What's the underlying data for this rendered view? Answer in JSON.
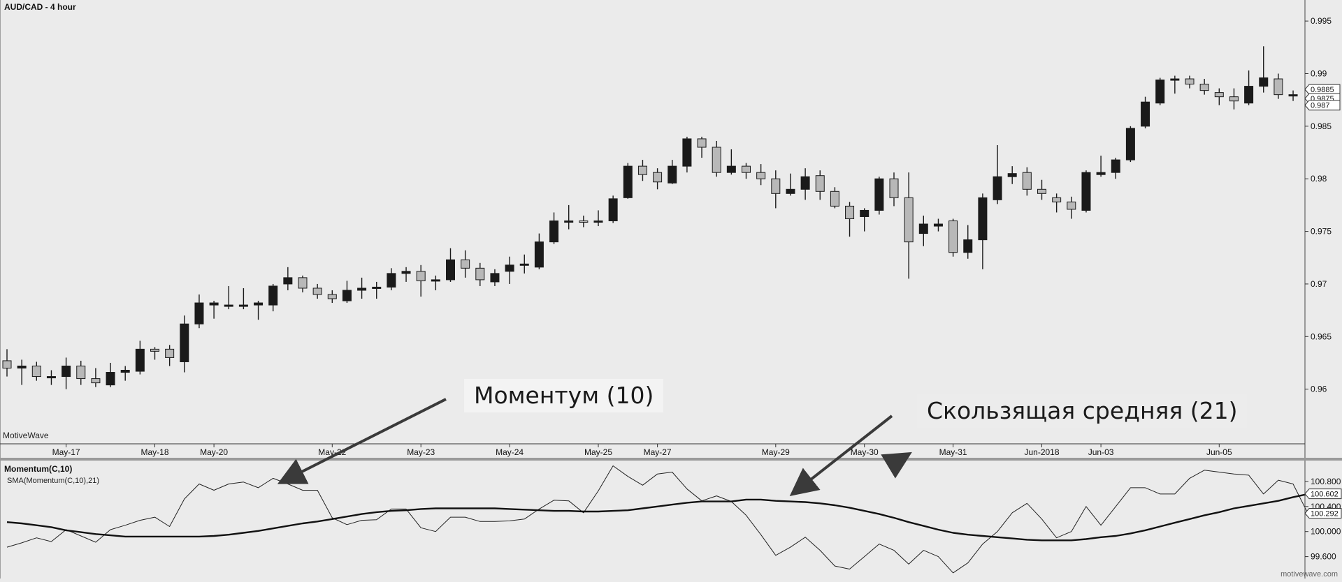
{
  "title": "AUD/CAD - 4 hour",
  "brand": "MotiveWave",
  "watermark": "motivewave.com",
  "indicator": {
    "title": "Momentum(C,10)",
    "subtitle": "SMA(Momentum(C,10),21)"
  },
  "annotations": {
    "momentum": "Моментум (10)",
    "sma": "Скользящая средняя (21)"
  },
  "colors": {
    "background": "#ebebeb",
    "bull": "#1a1a1a",
    "bear": "#b8b8b8",
    "line": "#111111"
  },
  "chart_data": [
    {
      "type": "candlestick",
      "title": "AUD/CAD - 4 hour",
      "x_labels": [
        "May-17",
        "May-18",
        "May-20",
        "May-22",
        "May-23",
        "May-24",
        "May-25",
        "May-27",
        "May-29",
        "May-30",
        "May-31",
        "Jun-2018",
        "Jun-03",
        "Jun-05"
      ],
      "x_label_index": [
        4,
        10,
        14,
        22,
        28,
        34,
        40,
        44,
        52,
        58,
        64,
        70,
        74,
        82
      ],
      "ylim": [
        0.955,
        0.997
      ],
      "y_ticks": [
        "0.96",
        "0.965",
        "0.97",
        "0.975",
        "0.98",
        "0.985",
        "0.99",
        "0.995"
      ],
      "price_labels": [
        "0.9885",
        "0.9875",
        "0.987"
      ],
      "candles": [
        {
          "o": 0.9627,
          "h": 0.9638,
          "l": 0.9612,
          "c": 0.962
        },
        {
          "o": 0.962,
          "h": 0.9628,
          "l": 0.9604,
          "c": 0.9622
        },
        {
          "o": 0.9622,
          "h": 0.9626,
          "l": 0.9608,
          "c": 0.9612
        },
        {
          "o": 0.9612,
          "h": 0.9618,
          "l": 0.9604,
          "c": 0.9612
        },
        {
          "o": 0.9612,
          "h": 0.963,
          "l": 0.96,
          "c": 0.9622
        },
        {
          "o": 0.9622,
          "h": 0.9627,
          "l": 0.9604,
          "c": 0.961
        },
        {
          "o": 0.961,
          "h": 0.962,
          "l": 0.9602,
          "c": 0.9606
        },
        {
          "o": 0.9604,
          "h": 0.9625,
          "l": 0.9602,
          "c": 0.9616
        },
        {
          "o": 0.9616,
          "h": 0.9622,
          "l": 0.9608,
          "c": 0.9618
        },
        {
          "o": 0.9617,
          "h": 0.9646,
          "l": 0.9614,
          "c": 0.9638
        },
        {
          "o": 0.9638,
          "h": 0.964,
          "l": 0.9628,
          "c": 0.9636
        },
        {
          "o": 0.9638,
          "h": 0.9642,
          "l": 0.9622,
          "c": 0.963
        },
        {
          "o": 0.9626,
          "h": 0.967,
          "l": 0.9616,
          "c": 0.9662
        },
        {
          "o": 0.9662,
          "h": 0.969,
          "l": 0.9658,
          "c": 0.9682
        },
        {
          "o": 0.968,
          "h": 0.9684,
          "l": 0.9667,
          "c": 0.9682
        },
        {
          "o": 0.968,
          "h": 0.9698,
          "l": 0.9676,
          "c": 0.968
        },
        {
          "o": 0.968,
          "h": 0.9696,
          "l": 0.9676,
          "c": 0.968
        },
        {
          "o": 0.968,
          "h": 0.9684,
          "l": 0.9666,
          "c": 0.9682
        },
        {
          "o": 0.968,
          "h": 0.97,
          "l": 0.9674,
          "c": 0.9698
        },
        {
          "o": 0.97,
          "h": 0.9716,
          "l": 0.9694,
          "c": 0.9706
        },
        {
          "o": 0.9706,
          "h": 0.9708,
          "l": 0.9692,
          "c": 0.9696
        },
        {
          "o": 0.9696,
          "h": 0.97,
          "l": 0.9686,
          "c": 0.969
        },
        {
          "o": 0.969,
          "h": 0.9694,
          "l": 0.9682,
          "c": 0.9686
        },
        {
          "o": 0.9684,
          "h": 0.9703,
          "l": 0.9682,
          "c": 0.9694
        },
        {
          "o": 0.9694,
          "h": 0.9706,
          "l": 0.9686,
          "c": 0.9696
        },
        {
          "o": 0.9696,
          "h": 0.9702,
          "l": 0.9686,
          "c": 0.9697
        },
        {
          "o": 0.9697,
          "h": 0.9715,
          "l": 0.9694,
          "c": 0.971
        },
        {
          "o": 0.971,
          "h": 0.9716,
          "l": 0.9702,
          "c": 0.9712
        },
        {
          "o": 0.9712,
          "h": 0.9718,
          "l": 0.9688,
          "c": 0.9703
        },
        {
          "o": 0.9703,
          "h": 0.9708,
          "l": 0.9694,
          "c": 0.9704
        },
        {
          "o": 0.9704,
          "h": 0.9734,
          "l": 0.9702,
          "c": 0.9723
        },
        {
          "o": 0.9723,
          "h": 0.9732,
          "l": 0.9706,
          "c": 0.9715
        },
        {
          "o": 0.9715,
          "h": 0.972,
          "l": 0.9698,
          "c": 0.9704
        },
        {
          "o": 0.9702,
          "h": 0.9714,
          "l": 0.9698,
          "c": 0.971
        },
        {
          "o": 0.9712,
          "h": 0.9726,
          "l": 0.97,
          "c": 0.9718
        },
        {
          "o": 0.9718,
          "h": 0.9728,
          "l": 0.971,
          "c": 0.9719
        },
        {
          "o": 0.9716,
          "h": 0.9748,
          "l": 0.9714,
          "c": 0.974
        },
        {
          "o": 0.974,
          "h": 0.9768,
          "l": 0.9738,
          "c": 0.976
        },
        {
          "o": 0.976,
          "h": 0.9775,
          "l": 0.9752,
          "c": 0.976
        },
        {
          "o": 0.976,
          "h": 0.9765,
          "l": 0.9754,
          "c": 0.9759
        },
        {
          "o": 0.9759,
          "h": 0.977,
          "l": 0.9755,
          "c": 0.976
        },
        {
          "o": 0.976,
          "h": 0.9784,
          "l": 0.9758,
          "c": 0.9781
        },
        {
          "o": 0.9782,
          "h": 0.9815,
          "l": 0.9781,
          "c": 0.9812
        },
        {
          "o": 0.9812,
          "h": 0.9818,
          "l": 0.9798,
          "c": 0.9804
        },
        {
          "o": 0.9806,
          "h": 0.981,
          "l": 0.979,
          "c": 0.9797
        },
        {
          "o": 0.9796,
          "h": 0.9818,
          "l": 0.9795,
          "c": 0.9812
        },
        {
          "o": 0.9812,
          "h": 0.984,
          "l": 0.9806,
          "c": 0.9838
        },
        {
          "o": 0.9838,
          "h": 0.984,
          "l": 0.982,
          "c": 0.983
        },
        {
          "o": 0.983,
          "h": 0.9836,
          "l": 0.9802,
          "c": 0.9806
        },
        {
          "o": 0.9806,
          "h": 0.9828,
          "l": 0.9804,
          "c": 0.9812
        },
        {
          "o": 0.9812,
          "h": 0.9815,
          "l": 0.98,
          "c": 0.9806
        },
        {
          "o": 0.9806,
          "h": 0.9814,
          "l": 0.9794,
          "c": 0.98
        },
        {
          "o": 0.98,
          "h": 0.9808,
          "l": 0.9772,
          "c": 0.9786
        },
        {
          "o": 0.9786,
          "h": 0.9805,
          "l": 0.9784,
          "c": 0.979
        },
        {
          "o": 0.979,
          "h": 0.981,
          "l": 0.978,
          "c": 0.9802
        },
        {
          "o": 0.9803,
          "h": 0.9808,
          "l": 0.978,
          "c": 0.9788
        },
        {
          "o": 0.9788,
          "h": 0.9792,
          "l": 0.9772,
          "c": 0.9774
        },
        {
          "o": 0.9774,
          "h": 0.9778,
          "l": 0.9745,
          "c": 0.9762
        },
        {
          "o": 0.9764,
          "h": 0.9772,
          "l": 0.975,
          "c": 0.977
        },
        {
          "o": 0.977,
          "h": 0.9802,
          "l": 0.9766,
          "c": 0.98
        },
        {
          "o": 0.98,
          "h": 0.9806,
          "l": 0.9774,
          "c": 0.9782
        },
        {
          "o": 0.9782,
          "h": 0.9806,
          "l": 0.9705,
          "c": 0.974
        },
        {
          "o": 0.9748,
          "h": 0.9765,
          "l": 0.9736,
          "c": 0.9757
        },
        {
          "o": 0.9755,
          "h": 0.9762,
          "l": 0.975,
          "c": 0.9757
        },
        {
          "o": 0.976,
          "h": 0.9762,
          "l": 0.9726,
          "c": 0.973
        },
        {
          "o": 0.973,
          "h": 0.9756,
          "l": 0.9724,
          "c": 0.9742
        },
        {
          "o": 0.9742,
          "h": 0.9786,
          "l": 0.9714,
          "c": 0.9782
        },
        {
          "o": 0.978,
          "h": 0.9832,
          "l": 0.9776,
          "c": 0.9802
        },
        {
          "o": 0.9802,
          "h": 0.9812,
          "l": 0.9795,
          "c": 0.9805
        },
        {
          "o": 0.9806,
          "h": 0.9811,
          "l": 0.9784,
          "c": 0.979
        },
        {
          "o": 0.979,
          "h": 0.9799,
          "l": 0.978,
          "c": 0.9786
        },
        {
          "o": 0.9782,
          "h": 0.9786,
          "l": 0.9768,
          "c": 0.9778
        },
        {
          "o": 0.9778,
          "h": 0.9783,
          "l": 0.9762,
          "c": 0.9771
        },
        {
          "o": 0.977,
          "h": 0.9808,
          "l": 0.9768,
          "c": 0.9806
        },
        {
          "o": 0.9804,
          "h": 0.9822,
          "l": 0.9802,
          "c": 0.9806
        },
        {
          "o": 0.9806,
          "h": 0.982,
          "l": 0.98,
          "c": 0.9818
        },
        {
          "o": 0.9818,
          "h": 0.985,
          "l": 0.9816,
          "c": 0.9848
        },
        {
          "o": 0.985,
          "h": 0.9878,
          "l": 0.9848,
          "c": 0.9873
        },
        {
          "o": 0.9872,
          "h": 0.9896,
          "l": 0.987,
          "c": 0.9894
        },
        {
          "o": 0.9895,
          "h": 0.9898,
          "l": 0.9881,
          "c": 0.9895
        },
        {
          "o": 0.9895,
          "h": 0.9898,
          "l": 0.9886,
          "c": 0.989
        },
        {
          "o": 0.989,
          "h": 0.9895,
          "l": 0.988,
          "c": 0.9884
        },
        {
          "o": 0.9882,
          "h": 0.9886,
          "l": 0.987,
          "c": 0.9878
        },
        {
          "o": 0.9878,
          "h": 0.9886,
          "l": 0.9866,
          "c": 0.9874
        },
        {
          "o": 0.9872,
          "h": 0.9903,
          "l": 0.987,
          "c": 0.9888
        },
        {
          "o": 0.9888,
          "h": 0.9926,
          "l": 0.9882,
          "c": 0.9896
        },
        {
          "o": 0.9895,
          "h": 0.99,
          "l": 0.9876,
          "c": 0.988
        },
        {
          "o": 0.988,
          "h": 0.9884,
          "l": 0.9874,
          "c": 0.988
        }
      ]
    },
    {
      "type": "line",
      "title": "Momentum(C,10)",
      "ylim": [
        99.25,
        101.1
      ],
      "y_ticks": [
        "99.600",
        "100.000",
        "100.400",
        "100.800"
      ],
      "value_labels": [
        "100.602",
        "100.292"
      ],
      "series": [
        {
          "name": "Momentum(C,10)",
          "values": [
            99.75,
            99.82,
            99.9,
            99.84,
            100.03,
            99.93,
            99.83,
            100.03,
            100.1,
            100.18,
            100.23,
            100.08,
            100.52,
            100.76,
            100.66,
            100.76,
            100.79,
            100.7,
            100.85,
            100.76,
            100.66,
            100.66,
            100.22,
            100.11,
            100.18,
            100.19,
            100.36,
            100.36,
            100.06,
            100.0,
            100.23,
            100.23,
            100.16,
            100.16,
            100.17,
            100.2,
            100.36,
            100.5,
            100.49,
            100.3,
            100.65,
            101.05,
            100.88,
            100.74,
            100.92,
            100.95,
            100.68,
            100.49,
            100.57,
            100.48,
            100.26,
            99.95,
            99.62,
            99.75,
            99.91,
            99.7,
            99.45,
            99.4,
            99.6,
            99.8,
            99.7,
            99.48,
            99.7,
            99.6,
            99.34,
            99.5,
            99.8,
            100.0,
            100.3,
            100.45,
            100.2,
            99.9,
            100.0,
            100.4,
            100.1,
            100.4,
            100.7,
            100.7,
            100.6,
            100.6,
            100.85,
            100.98,
            100.95,
            100.92,
            100.9,
            100.6,
            100.82,
            100.76,
            100.29
          ]
        },
        {
          "name": "SMA(Momentum(C,10),21)",
          "values": [
            100.15,
            100.13,
            100.1,
            100.07,
            100.02,
            99.99,
            99.96,
            99.94,
            99.92,
            99.92,
            99.92,
            99.92,
            99.92,
            99.92,
            99.93,
            99.95,
            99.98,
            100.01,
            100.05,
            100.09,
            100.13,
            100.16,
            100.2,
            100.24,
            100.28,
            100.31,
            100.33,
            100.34,
            100.36,
            100.37,
            100.37,
            100.37,
            100.37,
            100.37,
            100.36,
            100.35,
            100.34,
            100.33,
            100.33,
            100.32,
            100.32,
            100.33,
            100.34,
            100.37,
            100.4,
            100.43,
            100.46,
            100.48,
            100.48,
            100.48,
            100.51,
            100.51,
            100.49,
            100.48,
            100.47,
            100.45,
            100.42,
            100.38,
            100.33,
            100.28,
            100.22,
            100.15,
            100.09,
            100.03,
            99.98,
            99.95,
            99.93,
            99.91,
            99.89,
            99.87,
            99.86,
            99.86,
            99.86,
            99.88,
            99.91,
            99.93,
            99.97,
            100.02,
            100.08,
            100.14,
            100.2,
            100.26,
            100.31,
            100.37,
            100.41,
            100.45,
            100.49,
            100.55,
            100.6
          ]
        }
      ]
    }
  ]
}
